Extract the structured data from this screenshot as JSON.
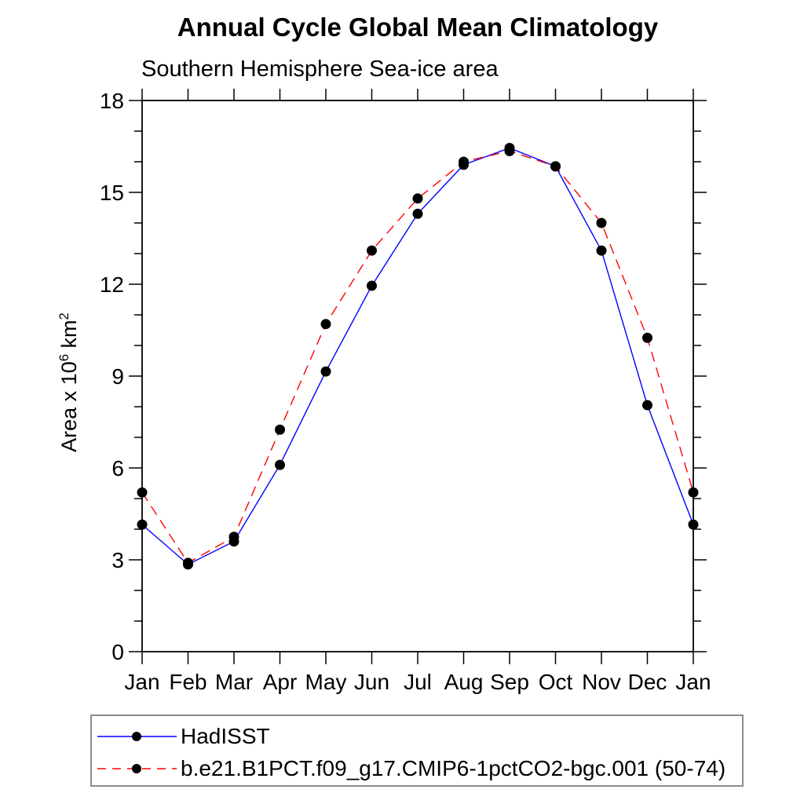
{
  "title": "Annual Cycle Global Mean Climatology",
  "subtitle": "Southern Hemisphere Sea-ice area",
  "chart_data": {
    "type": "line",
    "title": "Annual Cycle Global Mean Climatology",
    "subtitle": "Southern Hemisphere Sea-ice area",
    "xlabel": "",
    "ylabel": "Area x 10^6 km^2",
    "ylabel_parts": [
      {
        "text": "Area x 10"
      },
      {
        "sup": "6"
      },
      {
        "text": " km"
      },
      {
        "sup": "2"
      }
    ],
    "x_categories": [
      "Jan",
      "Feb",
      "Mar",
      "Apr",
      "May",
      "Jun",
      "Jul",
      "Aug",
      "Sep",
      "Oct",
      "Nov",
      "Dec",
      "Jan"
    ],
    "ylim": [
      0,
      18
    ],
    "y_major_step": 3,
    "y_minor_step": 1,
    "grid": false,
    "legend_position": "bottom",
    "axis_color": "#000000",
    "marker_color": "#000000",
    "series": [
      {
        "name": "HadISST",
        "color": "#0000ff",
        "style": "solid",
        "marker": "filled-circle",
        "values": [
          4.15,
          2.85,
          3.6,
          6.1,
          9.15,
          11.95,
          14.3,
          15.9,
          16.45,
          15.85,
          13.1,
          8.05,
          4.15
        ]
      },
      {
        "name": "b.e21.B1PCT.f09_g17.CMIP6-1pctCO2-bgc.001 (50-74)",
        "color": "#ff0000",
        "style": "dashed",
        "marker": "filled-circle",
        "values": [
          5.2,
          2.9,
          3.75,
          7.25,
          10.7,
          13.1,
          14.8,
          16.0,
          16.35,
          15.85,
          14.0,
          10.25,
          5.2
        ]
      }
    ]
  }
}
